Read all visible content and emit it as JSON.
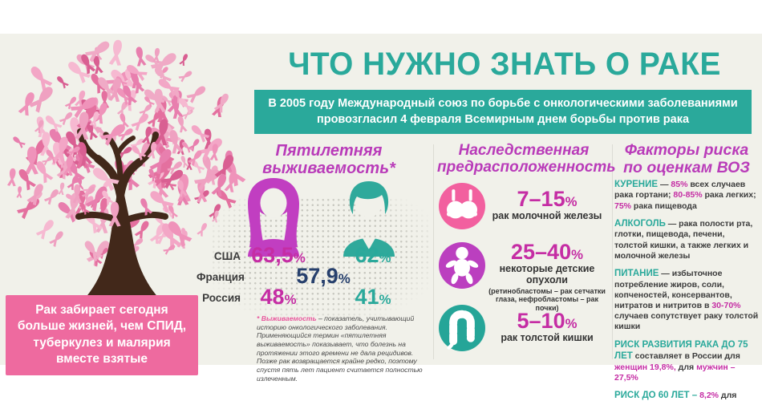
{
  "colors": {
    "teal": "#2aa99b",
    "magenta_heading": "#b93bb9",
    "magenta_percent": "#c52da4",
    "navy": "#27406d",
    "pink_caption_box": "#ee6a9f",
    "circle_bra": "#f2609f",
    "circle_baby": "#bb3fbf",
    "circle_colon": "#25a598",
    "ribbon_pinks": [
      "#f6b9d1",
      "#ef93ba",
      "#e4709f",
      "#f3a6c6",
      "#d95f92",
      "#efa1c1",
      "#e87fae",
      "#f0aac6"
    ]
  },
  "header": {
    "title": "ЧТО НУЖНО ЗНАТЬ О РАКЕ",
    "banner": "В 2005 году Международный союз по борьбе с онкологическими заболеваниями провозгласил 4 февраля Всемирным днем борьбы против рака"
  },
  "tree": {
    "caption": "Рак забирает сегодня больше жизней, чем СПИД, туберкулез и малярия вместе взятые"
  },
  "survival": {
    "heading_line1": "Пятилетняя",
    "heading_line2": "выживаемость*",
    "rows": [
      {
        "country": "США",
        "female": "63,5%",
        "male": "62%"
      },
      {
        "country": "Франция",
        "both": "57,9%"
      },
      {
        "country": "Россия",
        "female": "48%",
        "male": "41%"
      }
    ],
    "footnote_term": "* Выживаемость",
    "footnote_text": " – показатель, учитывающий историю онкологического заболевания. Применяющийся термин «пятилетняя выживаемость» показывает, что болезнь на протяжении этого времени не дала рецидивов. Позже рак возвращается крайне редко, поэтому спустя пять лет пациент считается полностью излеченным."
  },
  "heredity": {
    "heading_line1": "Наследственная",
    "heading_line2": "предрасположенность",
    "items": [
      {
        "icon": "bra-icon",
        "percent": "7–15%",
        "label": "рак молочной железы",
        "note": ""
      },
      {
        "icon": "baby-icon",
        "percent": "25–40%",
        "label": "некоторые детские опухоли",
        "note": "(ретинобластомы – рак сетчатки глаза, нефробластомы – рак почки)"
      },
      {
        "icon": "colon-icon",
        "percent": "5–10%",
        "label": "рак толстой кишки",
        "note": ""
      }
    ]
  },
  "risk_factors": {
    "heading_line1": "Факторы риска",
    "heading_line2": "по оценкам ВОЗ",
    "paragraphs": [
      {
        "segments": [
          {
            "t": "lead",
            "s": "КУРЕНИЕ"
          },
          {
            "t": "text",
            "s": " — "
          },
          {
            "t": "pct",
            "s": "85%"
          },
          {
            "t": "text",
            "s": " всех случаев рака гортани; "
          },
          {
            "t": "pct",
            "s": "80-85%"
          },
          {
            "t": "text",
            "s": " рака легких; "
          },
          {
            "t": "pct",
            "s": "75%"
          },
          {
            "t": "text",
            "s": " рака пищевода"
          }
        ]
      },
      {
        "segments": [
          {
            "t": "lead",
            "s": "АЛКОГОЛЬ"
          },
          {
            "t": "text",
            "s": " — рака полости рта, глотки, пищевода, печени, толстой кишки, а также легких и молочной железы"
          }
        ]
      },
      {
        "segments": [
          {
            "t": "lead",
            "s": "ПИТАНИЕ"
          },
          {
            "t": "text",
            "s": " — избыточное потребление жиров, соли, копченостей, консервантов, нитратов и нитритов в "
          },
          {
            "t": "pct",
            "s": "30-70%"
          },
          {
            "t": "text",
            "s": " случаев сопутствует раку толстой кишки"
          }
        ]
      },
      {
        "segments": [
          {
            "t": "lead",
            "s": "РИСК РАЗВИТИЯ РАКА ДО 75 ЛЕТ"
          },
          {
            "t": "text",
            "s": " составляет в России для "
          },
          {
            "t": "pct",
            "s": "женщин 19,8%,"
          },
          {
            "t": "text",
            "s": " для "
          },
          {
            "t": "pct",
            "s": "мужчин – 27,5%"
          }
        ]
      },
      {
        "segments": [
          {
            "t": "lead",
            "s": "РИСК ДО 60 ЛЕТ –"
          },
          {
            "t": "text",
            "s": " "
          },
          {
            "t": "pct",
            "s": "8,2%"
          },
          {
            "t": "text",
            "s": " для обоих полов"
          }
        ]
      }
    ]
  }
}
